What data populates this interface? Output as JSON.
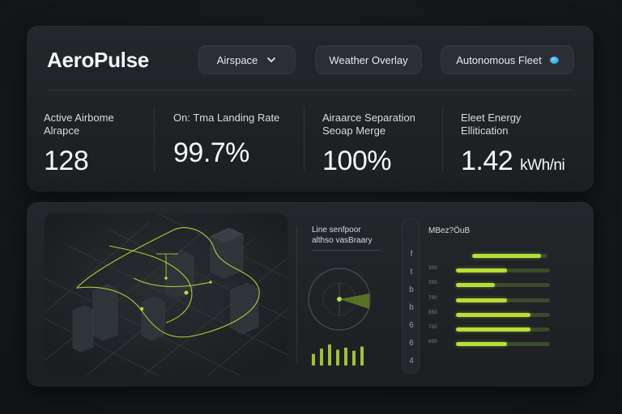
{
  "app": {
    "title": "AeroPulse"
  },
  "header": {
    "airspace_label": "Airspace",
    "weather_label": "Weather Overlay",
    "fleet_label": "Autonomous Fleet"
  },
  "kpis": [
    {
      "label_line1": "Active Airbome",
      "label_line2": "Alrapce",
      "value": "128",
      "unit": ""
    },
    {
      "label_line1": "On: Tma Landing Rate",
      "label_line2": "",
      "value": "99.7%",
      "unit": ""
    },
    {
      "label_line1": "Airaarce Separation",
      "label_line2": "Seoap Merge",
      "value": "100%",
      "unit": ""
    },
    {
      "label_line1": "Eleet Energy",
      "label_line2": "Ellitication",
      "value": "1.42",
      "unit": "kWh/ni"
    }
  ],
  "radar": {
    "title_line1": "Line senfpoor",
    "title_line2": "althso vasBraary",
    "histogram": [
      0.55,
      0.8,
      1.0,
      0.75,
      0.85,
      0.7,
      0.9
    ]
  },
  "scale": {
    "ticks": [
      "f",
      "t",
      "b",
      "b",
      "6",
      "6",
      "4"
    ]
  },
  "bars": {
    "title": "MBez?ÖuB",
    "rows": [
      {
        "label": "",
        "fill": 0.62,
        "track": 0.68,
        "offset": 0.3
      },
      {
        "label": "3S0",
        "fill": 0.46,
        "track": 0.85,
        "offset": 0
      },
      {
        "label": "3S0",
        "fill": 0.35,
        "track": 0.85,
        "offset": 0
      },
      {
        "label": "7S0",
        "fill": 0.46,
        "track": 0.85,
        "offset": 0
      },
      {
        "label": "8S0",
        "fill": 0.68,
        "track": 0.85,
        "offset": 0
      },
      {
        "label": "7S0",
        "fill": 0.68,
        "track": 0.85,
        "offset": 0
      },
      {
        "label": "6S0",
        "fill": 0.46,
        "track": 0.85,
        "offset": 0
      }
    ]
  },
  "colors": {
    "accent": "#b8dd3a",
    "fleet_dot": "#2e9bd6"
  }
}
